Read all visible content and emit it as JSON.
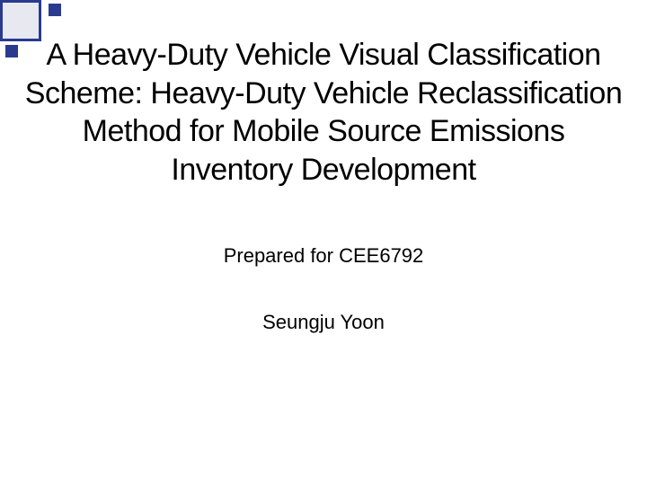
{
  "slide": {
    "title": "A Heavy-Duty Vehicle Visual Classification Scheme: Heavy-Duty Vehicle Reclassification Method for Mobile Source Emissions Inventory Development",
    "prepared_for": "Prepared for CEE6792",
    "author": "Seungju Yoon"
  },
  "style": {
    "background_color": "#ffffff",
    "decoration_border_color": "#2a3b8f",
    "decoration_fill_color": "#e8e8f0",
    "decoration_small_color": "#2a3b8f",
    "title_fontsize": 34,
    "title_color": "#000000",
    "subtitle_fontsize": 22,
    "subtitle_color": "#000000",
    "author_fontsize": 22,
    "font_family": "Verdana"
  }
}
